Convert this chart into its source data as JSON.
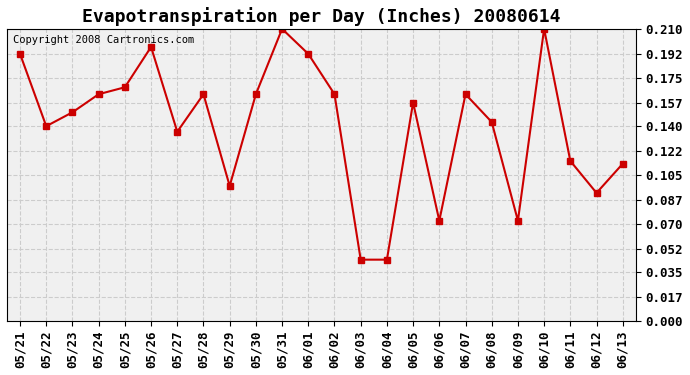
{
  "title": "Evapotranspiration per Day (Inches) 20080614",
  "copyright_text": "Copyright 2008 Cartronics.com",
  "dates": [
    "05/21",
    "05/22",
    "05/23",
    "05/24",
    "05/25",
    "05/26",
    "05/27",
    "05/28",
    "05/29",
    "05/30",
    "05/31",
    "06/01",
    "06/02",
    "06/03",
    "06/04",
    "06/05",
    "06/06",
    "06/07",
    "06/08",
    "06/09",
    "06/10",
    "06/11",
    "06/12",
    "06/13"
  ],
  "values": [
    0.192,
    0.14,
    0.15,
    0.163,
    0.168,
    0.197,
    0.136,
    0.163,
    0.097,
    0.163,
    0.21,
    0.192,
    0.163,
    0.044,
    0.044,
    0.157,
    0.072,
    0.163,
    0.143,
    0.072,
    0.21,
    0.115,
    0.092,
    0.113
  ],
  "line_color": "#cc0000",
  "marker": "s",
  "marker_size": 4,
  "background_color": "#ffffff",
  "plot_bg_color": "#f0f0f0",
  "grid_color": "#cccccc",
  "ylim": [
    0.0,
    0.21
  ],
  "yticks": [
    0.0,
    0.017,
    0.035,
    0.052,
    0.07,
    0.087,
    0.105,
    0.122,
    0.14,
    0.157,
    0.175,
    0.192,
    0.21
  ],
  "title_fontsize": 13,
  "copyright_fontsize": 7.5,
  "tick_fontsize": 9
}
